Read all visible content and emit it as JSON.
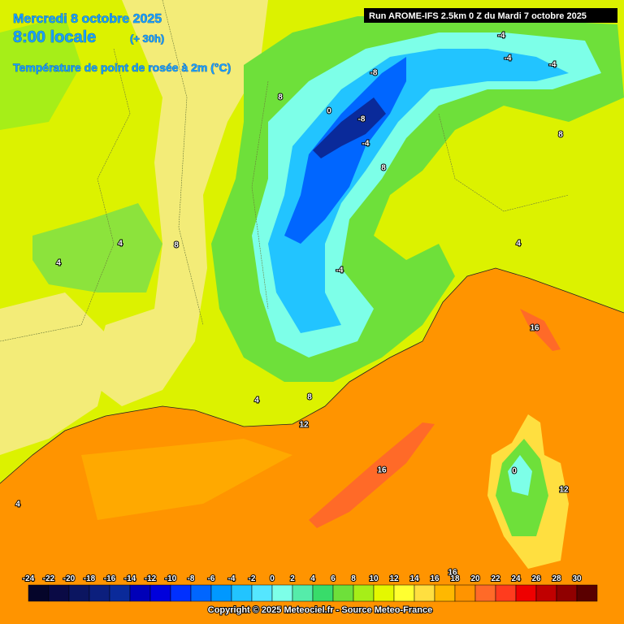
{
  "header": {
    "date": "Mercredi 8 octobre 2025",
    "time": "8:00 locale",
    "lead": "(+ 30h)",
    "parameter": "Température de point de rosée à 2m (°C)",
    "run": "Run AROME-IFS 2.5km 0 Z du Mardi 7 octobre 2025"
  },
  "contour_labels": [
    "8",
    "-8",
    "-4",
    "-4",
    "-4",
    "0",
    "-8",
    "-4",
    "8",
    "8",
    "4",
    "4",
    "8",
    "4",
    "-4",
    "16",
    "4",
    "8",
    "12",
    "16",
    "0",
    "12",
    "4",
    "16"
  ],
  "legend": {
    "ticks": [
      -24,
      -22,
      -20,
      -18,
      -16,
      -14,
      -12,
      -10,
      -8,
      -6,
      -4,
      -2,
      0,
      2,
      4,
      6,
      8,
      10,
      12,
      14,
      16,
      18,
      20,
      22,
      24,
      26,
      28,
      30
    ],
    "colors": [
      "#05052a",
      "#0a0a45",
      "#0b1560",
      "#0c1f7d",
      "#0a2a9a",
      "#0000b8",
      "#0000dc",
      "#0030ff",
      "#0066ff",
      "#0098ff",
      "#22c4ff",
      "#55e6ff",
      "#7dffe8",
      "#55ecaa",
      "#38dc6a",
      "#6ee03a",
      "#a6ee18",
      "#e4f800",
      "#ffff30",
      "#ffdf40",
      "#ffb800",
      "#ff9400",
      "#ff6a28",
      "#ff3c1e",
      "#ee0000",
      "#c00000",
      "#900000",
      "#5a0000"
    ]
  },
  "footer": "Copyright © 2025 Meteociel.fr - Source Meteo-France"
}
